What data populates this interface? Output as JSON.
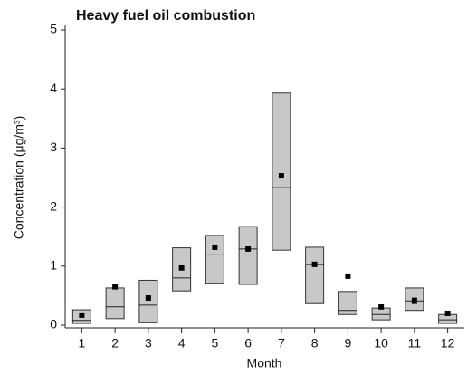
{
  "chart_data": {
    "type": "box",
    "title": "Heavy fuel oil combustion",
    "xlabel": "Month",
    "ylabel": "Concentration (μg/m³)",
    "categories": [
      "1",
      "2",
      "3",
      "4",
      "5",
      "6",
      "7",
      "8",
      "9",
      "10",
      "11",
      "12"
    ],
    "q1": [
      0.03,
      0.11,
      0.05,
      0.58,
      0.71,
      0.69,
      1.27,
      0.38,
      0.18,
      0.09,
      0.25,
      0.03
    ],
    "median": [
      0.08,
      0.31,
      0.34,
      0.8,
      1.19,
      1.29,
      2.33,
      1.03,
      0.25,
      0.18,
      0.41,
      0.09
    ],
    "q3": [
      0.26,
      0.63,
      0.76,
      1.31,
      1.52,
      1.67,
      3.93,
      1.32,
      0.57,
      0.29,
      0.63,
      0.18
    ],
    "mean": [
      0.17,
      0.65,
      0.46,
      0.97,
      1.32,
      1.29,
      2.53,
      1.03,
      0.83,
      0.31,
      0.42,
      0.2
    ],
    "color": "#c8c8c8",
    "ylim": [
      0,
      5
    ],
    "yticks": [
      0,
      1,
      2,
      3,
      4,
      5
    ]
  }
}
